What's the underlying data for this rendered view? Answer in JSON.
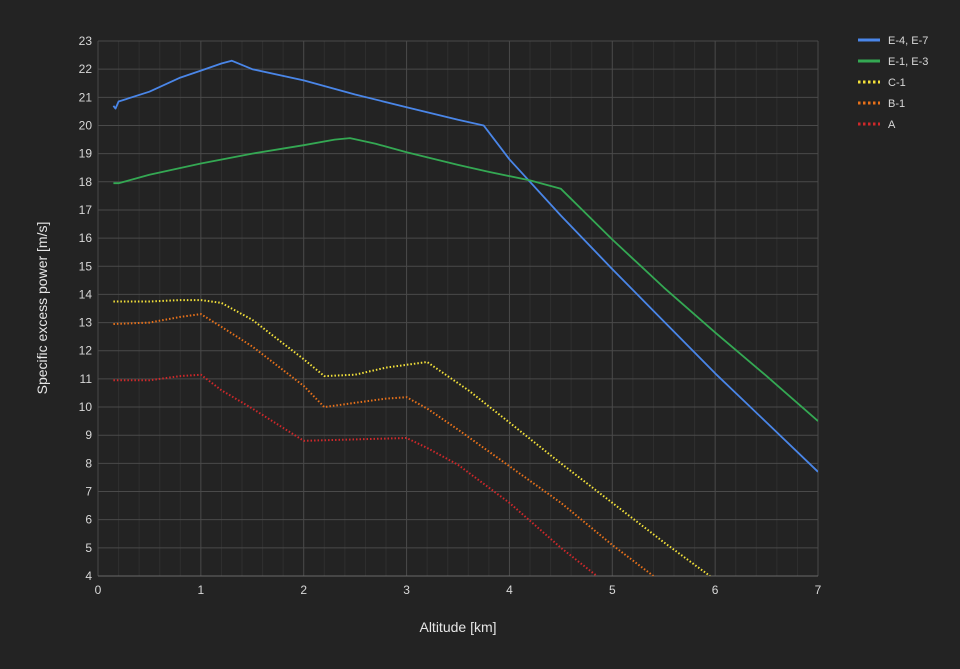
{
  "chart_data": {
    "type": "line",
    "xlabel": "Altitude [km]",
    "ylabel": "Specific excess power [m/s]",
    "xlim": [
      0,
      7
    ],
    "ylim": [
      4,
      23
    ],
    "x_ticks": [
      "0",
      "1",
      "2",
      "3",
      "4",
      "5",
      "6",
      "7"
    ],
    "y_ticks": [
      "4",
      "5",
      "6",
      "7",
      "8",
      "9",
      "10",
      "11",
      "12",
      "13",
      "14",
      "15",
      "16",
      "17",
      "18",
      "19",
      "20",
      "21",
      "22",
      "23"
    ],
    "grid": true,
    "legend_position": "top-right",
    "background": "#232323",
    "grid_color_major": "#4a4a4a",
    "grid_color_minor": "#2f2f2f",
    "series": [
      {
        "name": "E-4, E-7",
        "color": "#4a86e8",
        "style": "solid",
        "x": [
          0.15,
          0.17,
          0.2,
          0.5,
          0.8,
          1.0,
          1.2,
          1.3,
          1.5,
          2.0,
          2.5,
          3.0,
          3.5,
          3.75,
          4.0,
          4.5,
          5.0,
          5.5,
          6.0,
          6.5,
          7.0
        ],
        "y": [
          20.7,
          20.6,
          20.85,
          21.2,
          21.7,
          21.95,
          22.2,
          22.3,
          22.0,
          21.6,
          21.1,
          20.65,
          20.2,
          20.0,
          18.8,
          16.8,
          14.9,
          13.05,
          11.2,
          9.45,
          7.7
        ]
      },
      {
        "name": "E-1, E-3",
        "color": "#34a853",
        "style": "solid",
        "x": [
          0.15,
          0.2,
          0.5,
          1.0,
          1.5,
          2.0,
          2.3,
          2.45,
          2.7,
          3.0,
          3.5,
          3.8,
          4.2,
          4.5,
          5.0,
          5.5,
          6.0,
          6.5,
          7.0
        ],
        "y": [
          17.95,
          17.95,
          18.25,
          18.65,
          19.0,
          19.3,
          19.5,
          19.55,
          19.35,
          19.05,
          18.6,
          18.35,
          18.05,
          17.75,
          15.95,
          14.25,
          12.65,
          11.1,
          9.5
        ]
      },
      {
        "name": "C-1",
        "color": "#f4e23a",
        "style": "dotted",
        "x": [
          0.15,
          0.5,
          0.8,
          1.0,
          1.2,
          1.5,
          2.0,
          2.2,
          2.5,
          2.8,
          3.0,
          3.2,
          3.6,
          4.0,
          4.5,
          5.0,
          5.5,
          5.95
        ],
        "y": [
          13.75,
          13.75,
          13.8,
          13.8,
          13.7,
          13.1,
          11.7,
          11.1,
          11.15,
          11.4,
          11.5,
          11.6,
          10.6,
          9.45,
          8.0,
          6.6,
          5.2,
          4.0
        ]
      },
      {
        "name": "B-1",
        "color": "#e8711a",
        "style": "dotted",
        "x": [
          0.15,
          0.5,
          0.8,
          1.0,
          1.2,
          1.5,
          2.0,
          2.2,
          2.5,
          2.8,
          3.0,
          3.2,
          3.5,
          4.0,
          4.5,
          5.0,
          5.4
        ],
        "y": [
          12.95,
          13.0,
          13.2,
          13.3,
          12.85,
          12.15,
          10.75,
          10.0,
          10.15,
          10.3,
          10.35,
          9.95,
          9.2,
          7.9,
          6.6,
          5.1,
          4.0
        ]
      },
      {
        "name": "A",
        "color": "#d0282a",
        "style": "dotted",
        "x": [
          0.15,
          0.5,
          0.8,
          1.0,
          1.2,
          1.5,
          2.0,
          2.5,
          3.0,
          3.2,
          3.5,
          4.0,
          4.5,
          4.85
        ],
        "y": [
          10.95,
          10.95,
          11.1,
          11.15,
          10.6,
          9.95,
          8.8,
          8.85,
          8.9,
          8.55,
          7.95,
          6.6,
          5.0,
          4.0
        ]
      }
    ]
  }
}
